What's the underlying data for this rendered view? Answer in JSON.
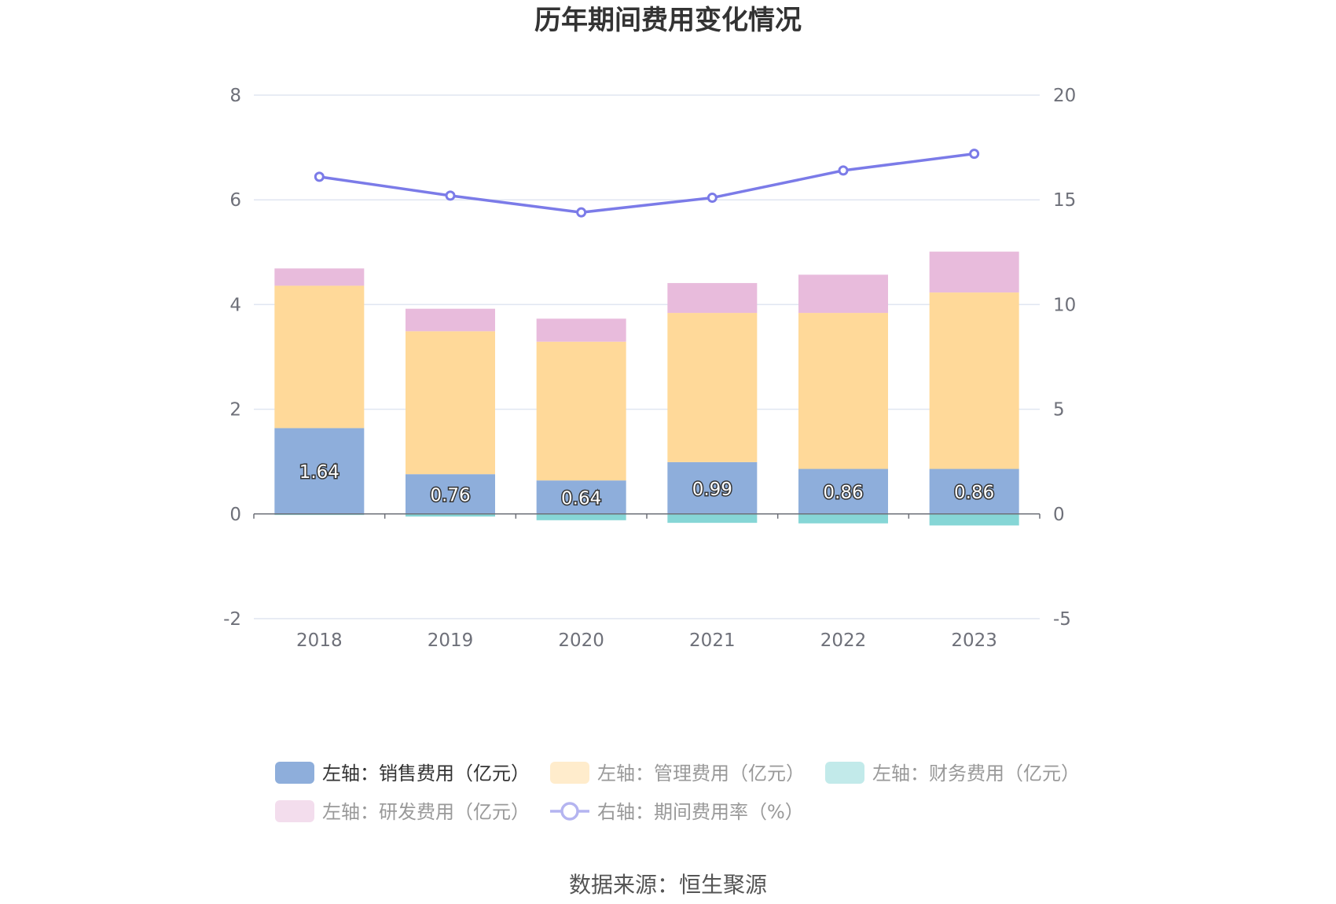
{
  "title": "历年期间费用变化情况",
  "source": "数据来源：恒生聚源",
  "chart_data": {
    "type": "bar",
    "stacked": true,
    "categories": [
      "2018",
      "2019",
      "2020",
      "2021",
      "2022",
      "2023"
    ],
    "series": [
      {
        "name": "左轴：销售费用（亿元）",
        "axis": "left",
        "color": "#8eaedb",
        "values": [
          1.64,
          0.76,
          0.64,
          0.99,
          0.86,
          0.86
        ],
        "show_labels": true
      },
      {
        "name": "左轴：管理费用（亿元）",
        "axis": "left",
        "color": "#ffd999",
        "values": [
          2.72,
          2.73,
          2.65,
          2.85,
          2.98,
          3.37
        ]
      },
      {
        "name": "左轴：财务费用（亿元）",
        "axis": "left",
        "color": "#86d6d6",
        "values": [
          -0.02,
          -0.05,
          -0.12,
          -0.17,
          -0.18,
          -0.22
        ]
      },
      {
        "name": "左轴：研发费用（亿元）",
        "axis": "left",
        "color": "#e8bbdc",
        "values": [
          0.33,
          0.43,
          0.44,
          0.57,
          0.73,
          0.78
        ]
      },
      {
        "name": "右轴：期间费用率（%）",
        "axis": "right",
        "type": "line",
        "color": "#7b7be8",
        "values": [
          16.1,
          15.2,
          14.4,
          15.1,
          16.4,
          17.2
        ]
      }
    ],
    "y_left": {
      "min": -2,
      "max": 8,
      "ticks": [
        -2,
        0,
        2,
        4,
        6,
        8
      ]
    },
    "y_right": {
      "min": -5,
      "max": 20,
      "ticks": [
        -5,
        0,
        5,
        10,
        15,
        20
      ]
    },
    "grid": true,
    "legend_position": "bottom"
  }
}
